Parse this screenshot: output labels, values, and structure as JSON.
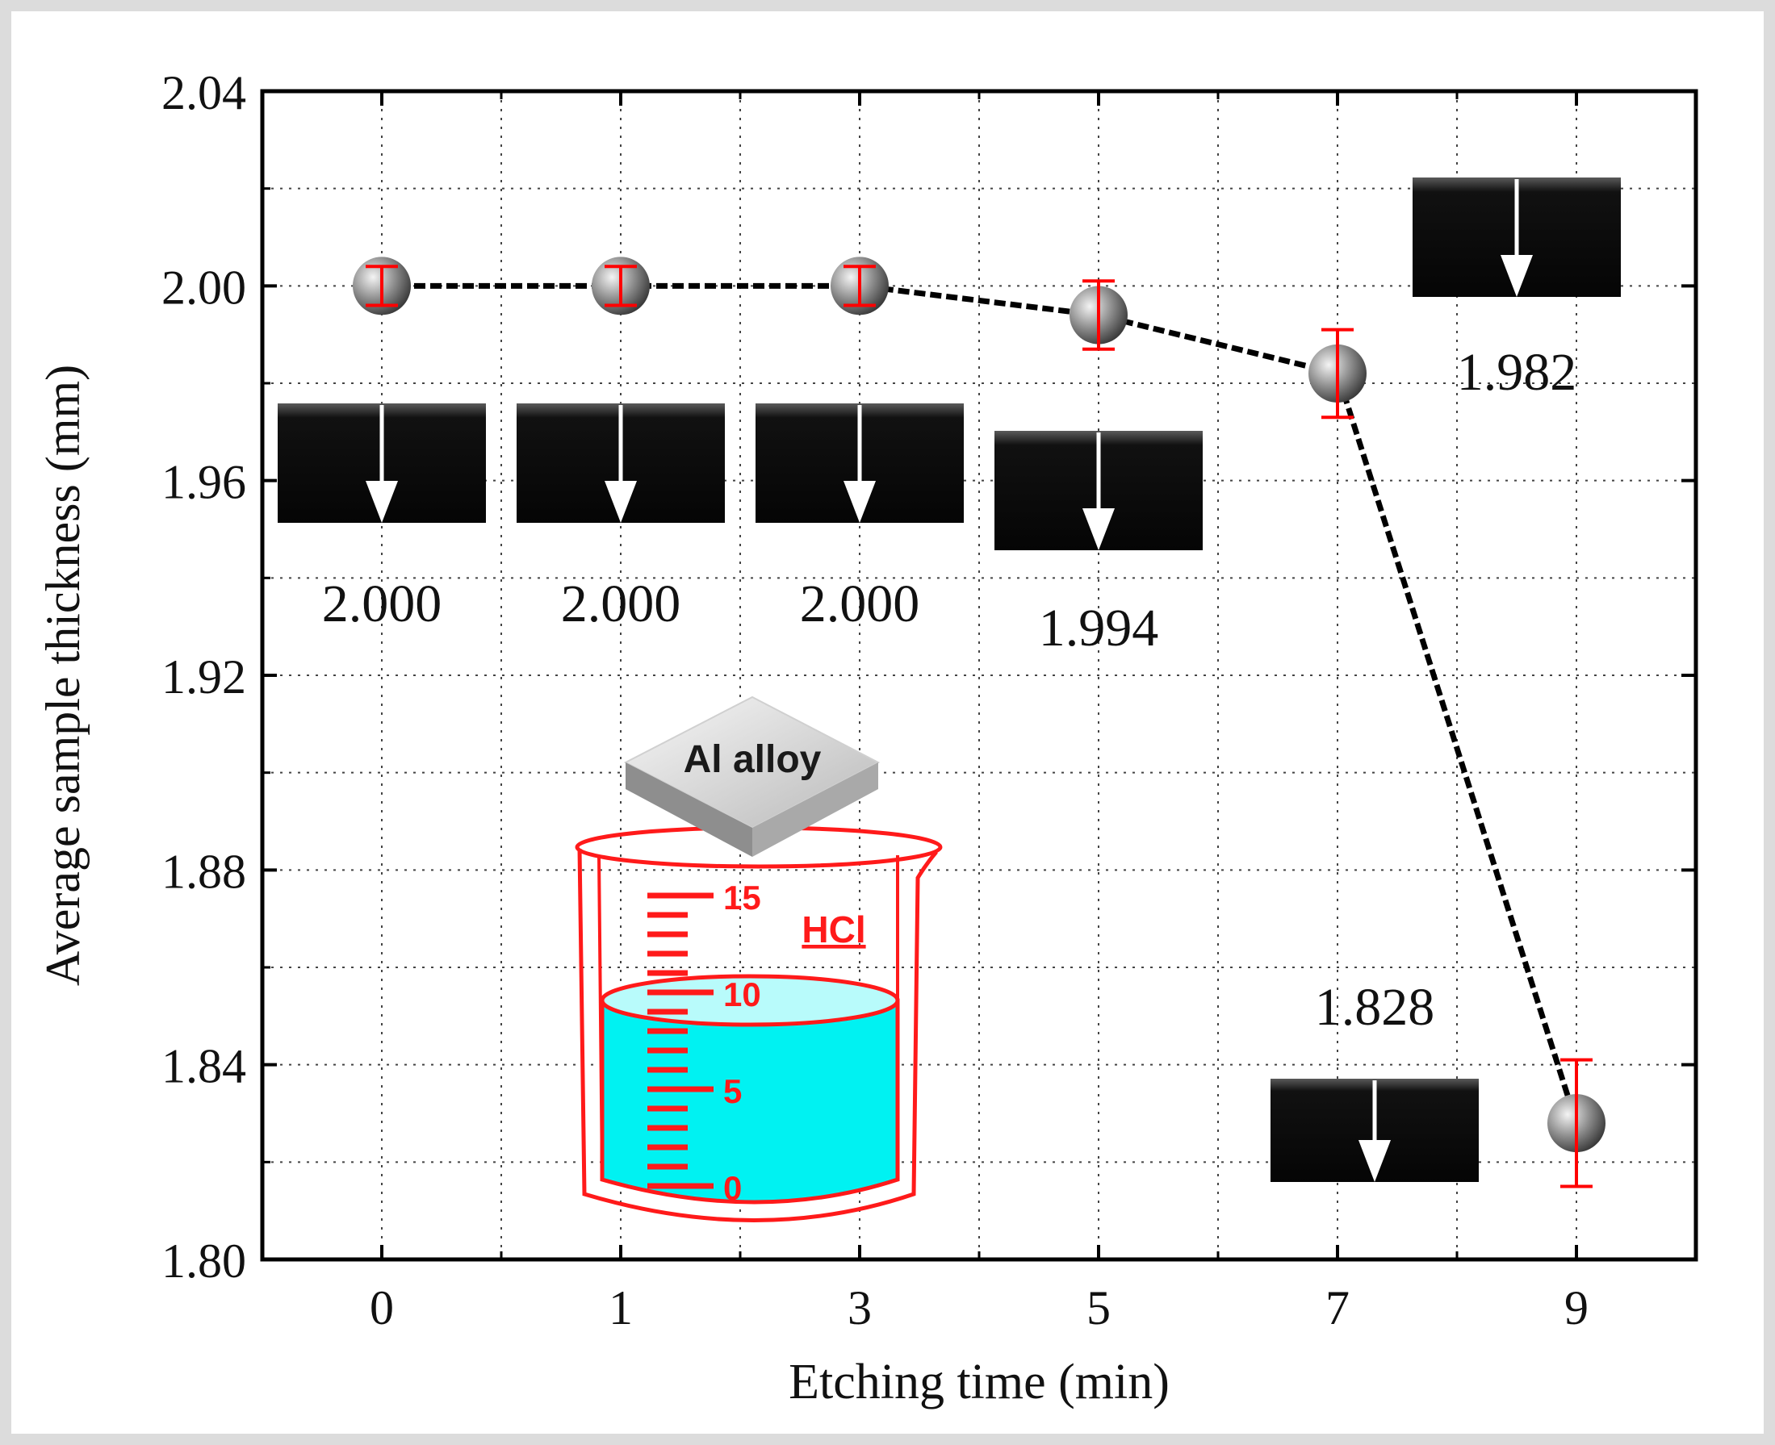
{
  "chart_data": {
    "type": "line",
    "xlabel": "Etching time (min)",
    "ylabel": "Average sample thickness (mm)",
    "categories": [
      "0",
      "1",
      "3",
      "5",
      "7",
      "9"
    ],
    "values": [
      2.0,
      2.0,
      2.0,
      1.994,
      1.982,
      1.828
    ],
    "error": [
      0.004,
      0.004,
      0.004,
      0.007,
      0.009,
      0.013
    ],
    "ylim": [
      1.8,
      2.04
    ],
    "yticks": [
      "1.80",
      "1.84",
      "1.88",
      "1.92",
      "1.96",
      "2.00",
      "2.04"
    ],
    "grid": true,
    "line_style": "dashed",
    "colors": {
      "line": "#000000",
      "error_bar": "#ff0000",
      "marker": "#8a8a8a",
      "frame": "#dcdcdc"
    },
    "point_labels": [
      "2.000",
      "2.000",
      "2.000",
      "1.994",
      "1.982",
      "1.828"
    ]
  },
  "inset": {
    "sample_label": "Al alloy",
    "acid_label": "HCl",
    "beaker_scale": [
      "15",
      "10",
      "5",
      "0"
    ],
    "colors": {
      "beaker": "#ff1a1a",
      "liquid": "#00f2f2"
    }
  }
}
